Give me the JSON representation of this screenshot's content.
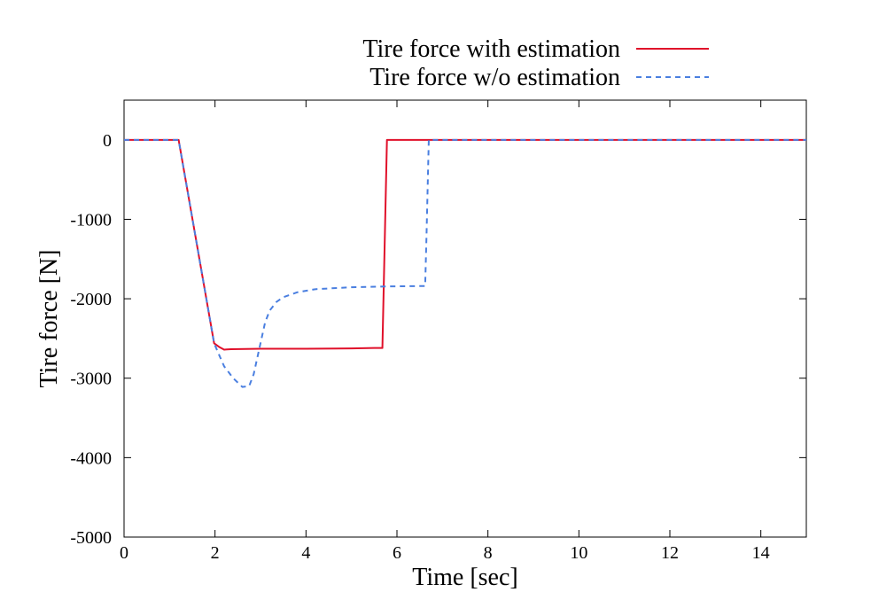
{
  "chart_data": {
    "type": "line",
    "title": "",
    "xlabel": "Time [sec]",
    "ylabel": "Tire force [N]",
    "xlim": [
      0,
      15
    ],
    "ylim": [
      -5000,
      500
    ],
    "xticks": [
      0,
      2,
      4,
      6,
      8,
      10,
      12,
      14
    ],
    "yticks": [
      0,
      -1000,
      -2000,
      -3000,
      -4000,
      -5000
    ],
    "grid": false,
    "legend_position": "top-center (outside plot)",
    "series": [
      {
        "name": "Tire force with estimation",
        "color": "#e0102a",
        "style": "solid",
        "points": [
          [
            0,
            0
          ],
          [
            1.2,
            0
          ],
          [
            1.98,
            -2560
          ],
          [
            2.1,
            -2610
          ],
          [
            2.2,
            -2640
          ],
          [
            2.35,
            -2635
          ],
          [
            3.0,
            -2630
          ],
          [
            4.0,
            -2630
          ],
          [
            5.0,
            -2625
          ],
          [
            5.5,
            -2620
          ],
          [
            5.68,
            -2620
          ],
          [
            5.78,
            0
          ],
          [
            6.0,
            0
          ],
          [
            10.0,
            0
          ],
          [
            15.0,
            0
          ]
        ]
      },
      {
        "name": "Tire force w/o estimation",
        "color": "#4a7fe0",
        "style": "dashed",
        "points": [
          [
            0,
            0
          ],
          [
            1.2,
            0
          ],
          [
            1.98,
            -2560
          ],
          [
            2.1,
            -2720
          ],
          [
            2.2,
            -2850
          ],
          [
            2.4,
            -3000
          ],
          [
            2.6,
            -3110
          ],
          [
            2.75,
            -3100
          ],
          [
            2.85,
            -2950
          ],
          [
            3.0,
            -2560
          ],
          [
            3.1,
            -2300
          ],
          [
            3.2,
            -2150
          ],
          [
            3.35,
            -2040
          ],
          [
            3.5,
            -1980
          ],
          [
            3.8,
            -1920
          ],
          [
            4.2,
            -1880
          ],
          [
            5.0,
            -1855
          ],
          [
            5.8,
            -1845
          ],
          [
            6.58,
            -1840
          ],
          [
            6.62,
            -1840
          ],
          [
            6.65,
            -1200
          ],
          [
            6.7,
            0
          ],
          [
            7.0,
            0
          ],
          [
            10.0,
            0
          ],
          [
            15.0,
            0
          ]
        ]
      }
    ]
  }
}
